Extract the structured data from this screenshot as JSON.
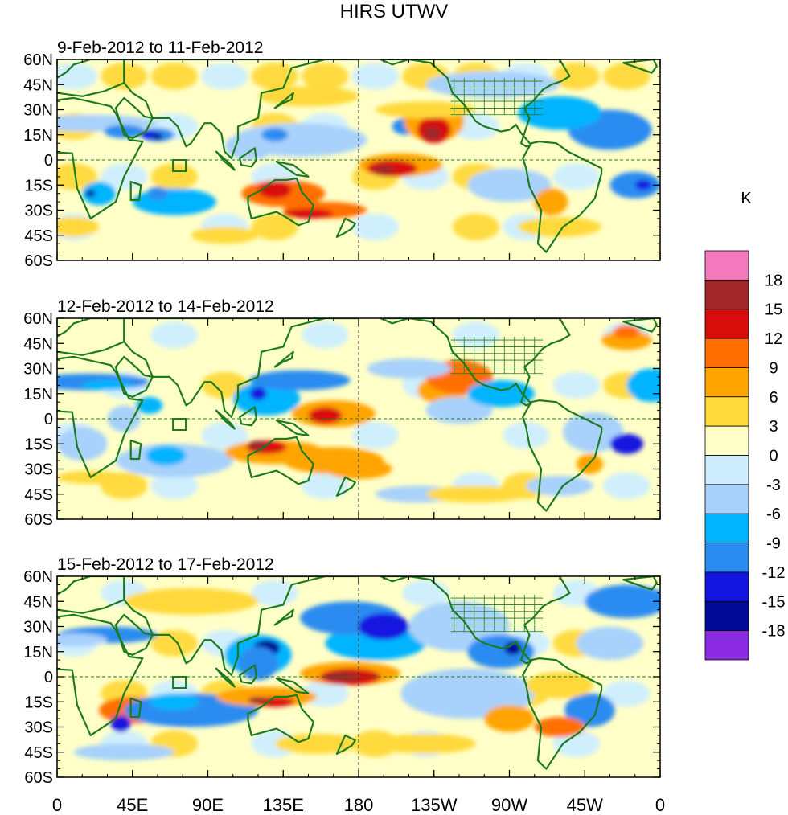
{
  "figure": {
    "title": "HIRS UTWV",
    "units": "K"
  },
  "panels": [
    {
      "subtitle": "9-Feb-2012 to 11-Feb-2012"
    },
    {
      "subtitle": "12-Feb-2012 to 14-Feb-2012"
    },
    {
      "subtitle": "15-Feb-2012 to 17-Feb-2012"
    }
  ],
  "axes": {
    "lat_labels": [
      "60N",
      "45N",
      "30N",
      "15N",
      "0",
      "15S",
      "30S",
      "45S",
      "60S"
    ],
    "lat_values": [
      60,
      45,
      30,
      15,
      0,
      -15,
      -30,
      -45,
      -60
    ],
    "lon_labels": [
      "0",
      "45E",
      "90E",
      "135E",
      "180",
      "135W",
      "90W",
      "45W",
      "0"
    ],
    "lon_values": [
      0,
      45,
      90,
      135,
      180,
      225,
      270,
      315,
      360
    ]
  },
  "colorbar": {
    "labels": [
      "18",
      "15",
      "12",
      "9",
      "6",
      "3",
      "0",
      "-3",
      "-6",
      "-9",
      "-12",
      "-15",
      "-18"
    ],
    "colors": [
      "#f47ac0",
      "#a0262a",
      "#d90c0c",
      "#ff6f00",
      "#ffa400",
      "#ffd93a",
      "#ffffc8",
      "#ceeeff",
      "#a8d2fb",
      "#00b4ff",
      "#2a8cf0",
      "#1414e0",
      "#000a96",
      "#8a2be2"
    ]
  },
  "map_colors": {
    "coast": "#1e7a1e",
    "dashed": "#1e7a1e"
  }
}
